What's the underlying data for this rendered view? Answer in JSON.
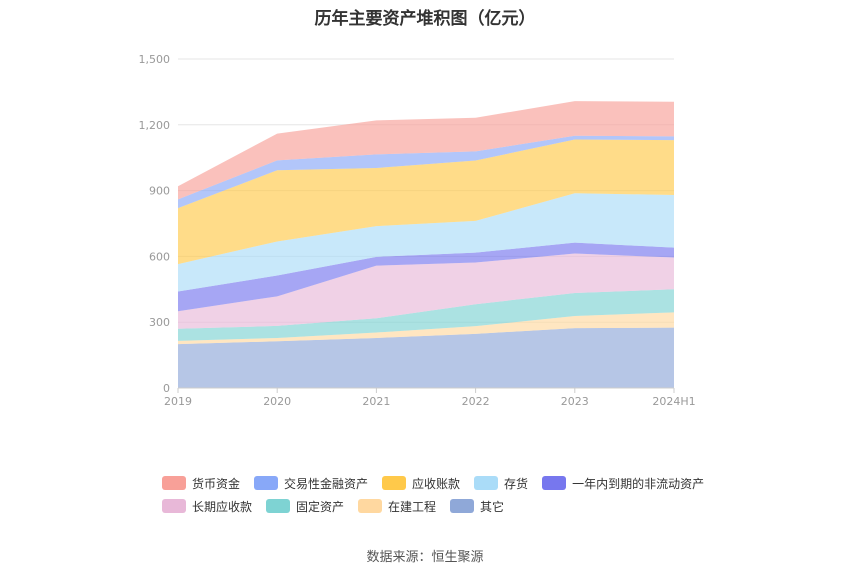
{
  "chart_data": {
    "type": "area",
    "stacked": true,
    "title": "历年主要资产堆积图（亿元）",
    "x": [
      "2019",
      "2020",
      "2021",
      "2022",
      "2023",
      "2024H1"
    ],
    "ylim": [
      0,
      1500
    ],
    "yticks": [
      "0",
      "300",
      "600",
      "900",
      "1,200",
      "1,500"
    ],
    "grid": true,
    "legend_position": "bottom",
    "series": [
      {
        "name": "其它",
        "color": "#8fa8d8",
        "values": [
          200,
          213,
          228,
          247,
          273,
          275
        ]
      },
      {
        "name": "在建工程",
        "color": "#ffd8a0",
        "values": [
          15,
          15,
          25,
          35,
          55,
          70
        ]
      },
      {
        "name": "固定资产",
        "color": "#7ed3d3",
        "values": [
          55,
          55,
          65,
          100,
          105,
          105
        ]
      },
      {
        "name": "长期应收款",
        "color": "#e8b8d8",
        "values": [
          80,
          135,
          240,
          190,
          180,
          145
        ]
      },
      {
        "name": "一年内到期的非流动资产",
        "color": "#7777ee",
        "values": [
          90,
          95,
          40,
          45,
          50,
          45
        ]
      },
      {
        "name": "存货",
        "color": "#aadcf8",
        "values": [
          125,
          155,
          140,
          145,
          225,
          240
        ]
      },
      {
        "name": "应收账款",
        "color": "#ffc94a",
        "values": [
          255,
          325,
          265,
          275,
          245,
          250
        ]
      },
      {
        "name": "交易性金融资产",
        "color": "#88a8f8",
        "values": [
          40,
          45,
          62,
          42,
          17,
          17
        ]
      },
      {
        "name": "货币资金",
        "color": "#f8a098",
        "values": [
          60,
          122,
          155,
          153,
          158,
          158
        ]
      }
    ],
    "legend_order": [
      "货币资金",
      "交易性金融资产",
      "应收账款",
      "存货",
      "一年内到期的非流动资产",
      "长期应收款",
      "固定资产",
      "在建工程",
      "其它"
    ],
    "source": "数据来源：恒生聚源"
  }
}
